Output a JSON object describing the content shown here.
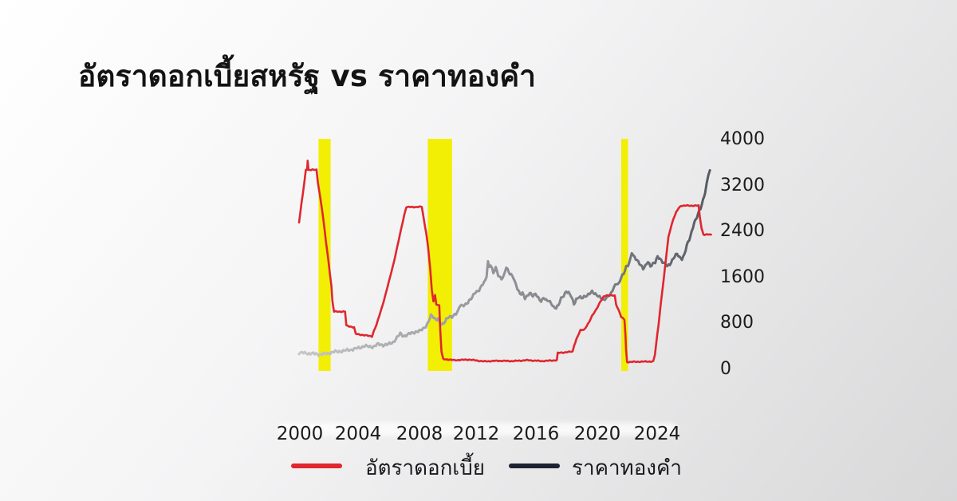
{
  "title": "อัตราดอกเบี้ยสหรัฐ vs ราคาทองคำ",
  "legend": {
    "items": [
      {
        "label": "อัตราดอกเบี้ย",
        "color": "#e0262e"
      },
      {
        "label": "ราคาทองคำ",
        "color": "#1c2230"
      }
    ]
  },
  "chart_data": {
    "type": "line",
    "title": "อัตราดอกเบี้ยสหรัฐ vs ราคาทองคำ",
    "grid": false,
    "legend_position": "bottom",
    "x_axis": {
      "tick_labels": [
        "2000",
        "2004",
        "2008",
        "2012",
        "2016",
        "2020",
        "2024"
      ],
      "range_years": [
        1999.3,
        2025.7
      ]
    },
    "y_axis_right": {
      "tick_labels": [
        "0",
        "800",
        "1600",
        "2400",
        "3200",
        "4000"
      ],
      "range": [
        0,
        4000
      ],
      "applies_to": "ราคาทองคำ"
    },
    "highlight_bands": {
      "color": "#f2ef04",
      "meaning": "recession-periods",
      "year_ranges": [
        [
          2001.2,
          2001.95
        ],
        [
          2007.95,
          2009.45
        ],
        [
          2019.9,
          2020.32
        ]
      ]
    },
    "series": [
      {
        "name": "อัตราดอกเบี้ย",
        "unit": "percent",
        "axis": "hidden",
        "color": "#e0262e",
        "points": [
          [
            2000.0,
            4.75
          ],
          [
            2000.1,
            5.15
          ],
          [
            2000.22,
            5.65
          ],
          [
            2000.32,
            6.05
          ],
          [
            2000.42,
            6.5
          ],
          [
            2000.5,
            6.52
          ],
          [
            2000.53,
            6.82
          ],
          [
            2000.58,
            6.5
          ],
          [
            2001.08,
            6.5
          ],
          [
            2001.16,
            6.1
          ],
          [
            2001.3,
            5.6
          ],
          [
            2001.44,
            5.1
          ],
          [
            2001.55,
            4.6
          ],
          [
            2001.66,
            4.1
          ],
          [
            2001.78,
            3.6
          ],
          [
            2001.9,
            3.05
          ],
          [
            2002.0,
            2.6
          ],
          [
            2002.06,
            2.1
          ],
          [
            2002.16,
            1.75
          ],
          [
            2002.84,
            1.75
          ],
          [
            2002.92,
            1.28
          ],
          [
            2003.4,
            1.22
          ],
          [
            2003.5,
            1.0
          ],
          [
            2004.5,
            0.92
          ],
          [
            2004.62,
            1.1
          ],
          [
            2004.78,
            1.3
          ],
          [
            2004.95,
            1.6
          ],
          [
            2005.15,
            1.95
          ],
          [
            2005.38,
            2.4
          ],
          [
            2005.62,
            2.9
          ],
          [
            2005.85,
            3.4
          ],
          [
            2006.08,
            3.95
          ],
          [
            2006.3,
            4.5
          ],
          [
            2006.5,
            5.0
          ],
          [
            2006.62,
            5.25
          ],
          [
            2007.58,
            5.26
          ],
          [
            2007.72,
            4.8
          ],
          [
            2007.85,
            4.4
          ],
          [
            2007.97,
            3.9
          ],
          [
            2008.1,
            3.2
          ],
          [
            2008.2,
            2.45
          ],
          [
            2008.3,
            2.1
          ],
          [
            2008.4,
            2.3
          ],
          [
            2008.48,
            2.0
          ],
          [
            2008.66,
            1.95
          ],
          [
            2008.72,
            1.15
          ],
          [
            2008.8,
            0.4
          ],
          [
            2008.9,
            0.16
          ],
          [
            2009.6,
            0.12
          ],
          [
            2010.5,
            0.14
          ],
          [
            2011.4,
            0.08
          ],
          [
            2012.3,
            0.1
          ],
          [
            2013.2,
            0.09
          ],
          [
            2014.1,
            0.12
          ],
          [
            2015.0,
            0.09
          ],
          [
            2015.92,
            0.12
          ],
          [
            2015.98,
            0.36
          ],
          [
            2016.9,
            0.41
          ],
          [
            2016.98,
            0.6
          ],
          [
            2017.15,
            0.85
          ],
          [
            2017.38,
            1.12
          ],
          [
            2017.62,
            1.15
          ],
          [
            2017.92,
            1.4
          ],
          [
            2018.12,
            1.62
          ],
          [
            2018.35,
            1.82
          ],
          [
            2018.58,
            2.05
          ],
          [
            2018.82,
            2.25
          ],
          [
            2019.0,
            2.3
          ],
          [
            2019.5,
            2.28
          ],
          [
            2019.58,
            2.0
          ],
          [
            2019.7,
            1.85
          ],
          [
            2019.82,
            1.7
          ],
          [
            2019.9,
            1.56
          ],
          [
            2020.1,
            1.48
          ],
          [
            2020.16,
            1.0
          ],
          [
            2020.2,
            0.45
          ],
          [
            2020.26,
            0.06
          ],
          [
            2021.0,
            0.07
          ],
          [
            2021.88,
            0.08
          ],
          [
            2021.98,
            0.3
          ],
          [
            2022.08,
            0.75
          ],
          [
            2022.2,
            1.3
          ],
          [
            2022.32,
            1.9
          ],
          [
            2022.45,
            2.5
          ],
          [
            2022.58,
            3.1
          ],
          [
            2022.7,
            3.7
          ],
          [
            2022.82,
            4.25
          ],
          [
            2022.95,
            4.55
          ],
          [
            2023.12,
            4.85
          ],
          [
            2023.3,
            5.08
          ],
          [
            2023.45,
            5.22
          ],
          [
            2023.6,
            5.3
          ],
          [
            2024.68,
            5.3
          ],
          [
            2024.76,
            4.9
          ],
          [
            2024.86,
            4.55
          ],
          [
            2024.98,
            4.33
          ],
          [
            2025.45,
            4.33
          ]
        ]
      },
      {
        "name": "ราคาทองคำ",
        "unit": "USD/oz",
        "axis": "right",
        "color_gradient": [
          "#c7c7c8",
          "#a9aaac",
          "#8f9196",
          "#7a7c83",
          "#565a63"
        ],
        "points": [
          [
            2000.0,
            290
          ],
          [
            2000.35,
            282
          ],
          [
            2000.7,
            277
          ],
          [
            2001.05,
            266
          ],
          [
            2001.35,
            260
          ],
          [
            2001.7,
            273
          ],
          [
            2002.0,
            296
          ],
          [
            2002.4,
            312
          ],
          [
            2002.8,
            324
          ],
          [
            2003.15,
            342
          ],
          [
            2003.5,
            358
          ],
          [
            2003.85,
            388
          ],
          [
            2004.05,
            408
          ],
          [
            2004.3,
            392
          ],
          [
            2004.6,
            400
          ],
          [
            2004.9,
            436
          ],
          [
            2005.2,
            426
          ],
          [
            2005.5,
            432
          ],
          [
            2005.8,
            472
          ],
          [
            2006.05,
            552
          ],
          [
            2006.25,
            618
          ],
          [
            2006.45,
            584
          ],
          [
            2006.7,
            602
          ],
          [
            2006.95,
            632
          ],
          [
            2007.2,
            658
          ],
          [
            2007.5,
            668
          ],
          [
            2007.75,
            732
          ],
          [
            2007.95,
            806
          ],
          [
            2008.15,
            930
          ],
          [
            2008.3,
            908
          ],
          [
            2008.45,
            872
          ],
          [
            2008.58,
            894
          ],
          [
            2008.7,
            812
          ],
          [
            2008.82,
            764
          ],
          [
            2008.95,
            804
          ],
          [
            2009.1,
            884
          ],
          [
            2009.25,
            922
          ],
          [
            2009.45,
            902
          ],
          [
            2009.6,
            944
          ],
          [
            2009.78,
            1006
          ],
          [
            2009.95,
            1122
          ],
          [
            2010.1,
            1092
          ],
          [
            2010.3,
            1132
          ],
          [
            2010.5,
            1202
          ],
          [
            2010.7,
            1252
          ],
          [
            2010.9,
            1342
          ],
          [
            2011.05,
            1364
          ],
          [
            2011.2,
            1424
          ],
          [
            2011.35,
            1484
          ],
          [
            2011.5,
            1532
          ],
          [
            2011.58,
            1620
          ],
          [
            2011.67,
            1882
          ],
          [
            2011.75,
            1784
          ],
          [
            2011.83,
            1836
          ],
          [
            2011.92,
            1756
          ],
          [
            2012.0,
            1664
          ],
          [
            2012.15,
            1762
          ],
          [
            2012.3,
            1644
          ],
          [
            2012.5,
            1586
          ],
          [
            2012.65,
            1622
          ],
          [
            2012.8,
            1772
          ],
          [
            2012.95,
            1694
          ],
          [
            2013.1,
            1662
          ],
          [
            2013.25,
            1594
          ],
          [
            2013.38,
            1472
          ],
          [
            2013.5,
            1392
          ],
          [
            2013.65,
            1314
          ],
          [
            2013.8,
            1342
          ],
          [
            2013.95,
            1236
          ],
          [
            2014.1,
            1262
          ],
          [
            2014.25,
            1332
          ],
          [
            2014.45,
            1292
          ],
          [
            2014.6,
            1312
          ],
          [
            2014.78,
            1232
          ],
          [
            2014.95,
            1186
          ],
          [
            2015.1,
            1262
          ],
          [
            2015.25,
            1204
          ],
          [
            2015.42,
            1182
          ],
          [
            2015.58,
            1152
          ],
          [
            2015.72,
            1094
          ],
          [
            2015.88,
            1072
          ],
          [
            2016.02,
            1104
          ],
          [
            2016.18,
            1232
          ],
          [
            2016.35,
            1294
          ],
          [
            2016.5,
            1362
          ],
          [
            2016.65,
            1324
          ],
          [
            2016.82,
            1264
          ],
          [
            2016.98,
            1144
          ],
          [
            2017.12,
            1224
          ],
          [
            2017.3,
            1254
          ],
          [
            2017.45,
            1232
          ],
          [
            2017.6,
            1272
          ],
          [
            2017.78,
            1292
          ],
          [
            2017.95,
            1314
          ],
          [
            2018.1,
            1344
          ],
          [
            2018.3,
            1322
          ],
          [
            2018.48,
            1282
          ],
          [
            2018.65,
            1234
          ],
          [
            2018.8,
            1196
          ],
          [
            2018.98,
            1254
          ],
          [
            2019.12,
            1292
          ],
          [
            2019.28,
            1314
          ],
          [
            2019.45,
            1424
          ],
          [
            2019.6,
            1504
          ],
          [
            2019.75,
            1494
          ],
          [
            2019.9,
            1602
          ],
          [
            2020.05,
            1652
          ],
          [
            2020.2,
            1784
          ],
          [
            2020.32,
            1824
          ],
          [
            2020.45,
            1904
          ],
          [
            2020.55,
            2032
          ],
          [
            2020.65,
            1964
          ],
          [
            2020.8,
            1922
          ],
          [
            2020.95,
            1884
          ],
          [
            2021.1,
            1824
          ],
          [
            2021.25,
            1744
          ],
          [
            2021.4,
            1794
          ],
          [
            2021.55,
            1884
          ],
          [
            2021.7,
            1804
          ],
          [
            2021.85,
            1834
          ],
          [
            2022.0,
            1854
          ],
          [
            2022.15,
            1964
          ],
          [
            2022.3,
            1934
          ],
          [
            2022.45,
            1874
          ],
          [
            2022.6,
            1824
          ],
          [
            2022.75,
            1794
          ],
          [
            2022.9,
            1834
          ],
          [
            2023.05,
            1904
          ],
          [
            2023.2,
            1964
          ],
          [
            2023.35,
            2004
          ],
          [
            2023.5,
            1954
          ],
          [
            2023.65,
            1934
          ],
          [
            2023.8,
            1994
          ],
          [
            2023.95,
            2152
          ],
          [
            2024.1,
            2254
          ],
          [
            2024.25,
            2404
          ],
          [
            2024.4,
            2554
          ],
          [
            2024.52,
            2604
          ],
          [
            2024.65,
            2704
          ],
          [
            2024.8,
            2804
          ],
          [
            2024.95,
            2954
          ],
          [
            2025.08,
            3084
          ],
          [
            2025.18,
            3224
          ],
          [
            2025.28,
            3384
          ],
          [
            2025.38,
            3466
          ]
        ]
      }
    ]
  }
}
